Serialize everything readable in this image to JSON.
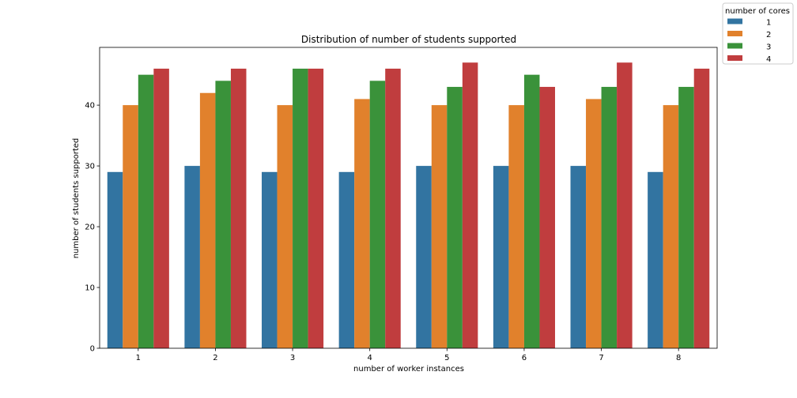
{
  "chart_data": {
    "type": "bar",
    "title": "Distribution of number of students supported",
    "xlabel": "number of worker instances",
    "ylabel": "number of students supported",
    "categories": [
      "1",
      "2",
      "3",
      "4",
      "5",
      "6",
      "7",
      "8"
    ],
    "ylim": [
      0,
      49.5
    ],
    "yticks": [
      0,
      10,
      20,
      30,
      40
    ],
    "grid": false,
    "legend": {
      "title": "number of cores",
      "placement": "top-right, outside plot"
    },
    "series": [
      {
        "name": "1",
        "color": "#3274a1",
        "values": [
          29,
          30,
          29,
          29,
          30,
          30,
          30,
          29
        ]
      },
      {
        "name": "2",
        "color": "#e1812c",
        "values": [
          40,
          42,
          40,
          41,
          40,
          40,
          41,
          40
        ]
      },
      {
        "name": "3",
        "color": "#3a923a",
        "values": [
          45,
          44,
          46,
          44,
          43,
          45,
          43,
          43
        ]
      },
      {
        "name": "4",
        "color": "#c03d3e",
        "values": [
          46,
          46,
          46,
          46,
          47,
          43,
          47,
          46
        ]
      }
    ]
  }
}
